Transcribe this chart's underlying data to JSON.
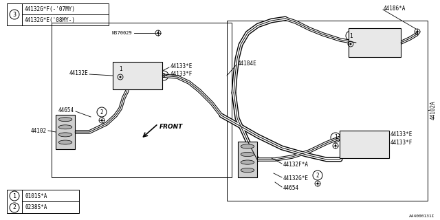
{
  "bg_color": "#ffffff",
  "line_color": "#000000",
  "legend_top": {
    "circle_label": "3",
    "line1": "44132G*F(-'07MY)",
    "line2": "44132G*E('08MY-)"
  },
  "legend_bottom": [
    {
      "circle": "1",
      "text": "0101S*A"
    },
    {
      "circle": "2",
      "text": "0238S*A"
    }
  ],
  "watermark": "A44000131I",
  "font_size_label": 5.5,
  "font_size_small": 5.0
}
